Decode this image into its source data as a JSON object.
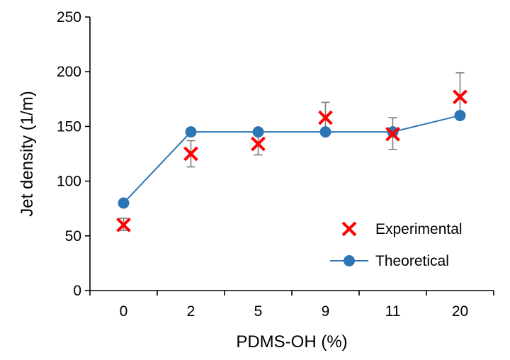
{
  "chart_data": {
    "type": "scatter",
    "xlabel": "PDMS-OH (%)",
    "ylabel": "Jet density (1/m)",
    "categories": [
      "0",
      "2",
      "5",
      "9",
      "11",
      "20"
    ],
    "ylim": [
      0,
      250
    ],
    "yticks": [
      0,
      50,
      100,
      150,
      200,
      250
    ],
    "legend_position": "bottom-right",
    "grid": false,
    "series": [
      {
        "name": "Experimental",
        "marker": "x",
        "color": "#ff0000",
        "values": [
          60,
          125,
          134,
          158,
          143,
          177
        ],
        "error": [
          [
            55,
            66
          ],
          [
            113,
            137
          ],
          [
            124,
            145
          ],
          [
            145,
            172
          ],
          [
            129,
            158
          ],
          [
            157,
            199
          ]
        ],
        "error_color": "#7f7f7f"
      },
      {
        "name": "Theoretical",
        "marker": "circle",
        "line": true,
        "color": "#2e75b6",
        "values": [
          80,
          145,
          145,
          145,
          145,
          160
        ]
      }
    ]
  }
}
